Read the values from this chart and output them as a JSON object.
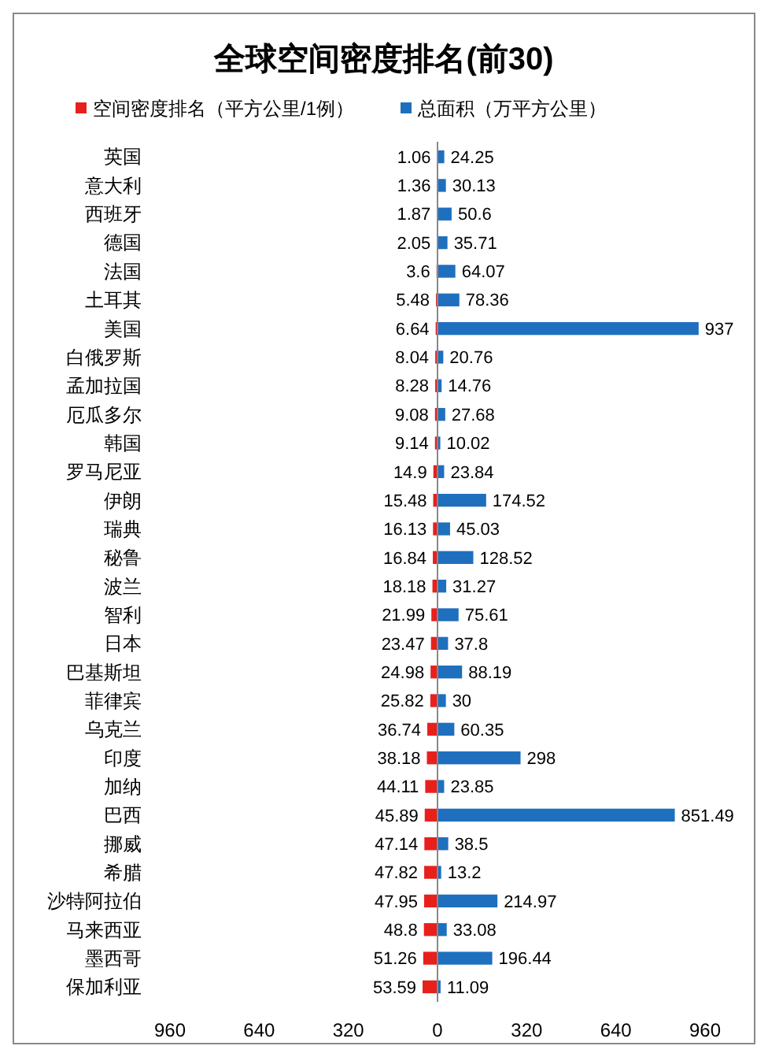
{
  "chart_data": {
    "type": "bar",
    "orientation": "horizontal",
    "stacked": true,
    "title": "全球空间密度排名(前30)",
    "legend": "top",
    "categories": [
      "英国",
      "意大利",
      "西班牙",
      "德国",
      "法国",
      "土耳其",
      "美国",
      "白俄罗斯",
      "孟加拉国",
      "厄瓜多尔",
      "韩国",
      "罗马尼亚",
      "伊朗",
      "瑞典",
      "秘鲁",
      "波兰",
      "智利",
      "日本",
      "巴基斯坦",
      "菲律宾",
      "乌克兰",
      "印度",
      "加纳",
      "巴西",
      "挪威",
      "希腊",
      "沙特阿拉伯",
      "马来西亚",
      "墨西哥",
      "保加利亚"
    ],
    "series": [
      {
        "name": "空间密度排名（平方公里/1例）",
        "color": "#e8201c",
        "values": [
          1.06,
          1.36,
          1.87,
          2.05,
          3.6,
          5.48,
          6.64,
          8.04,
          8.28,
          9.08,
          9.14,
          14.9,
          15.48,
          16.13,
          16.84,
          18.18,
          21.99,
          23.47,
          24.98,
          25.82,
          36.74,
          38.18,
          44.11,
          45.89,
          47.14,
          47.82,
          47.95,
          48.8,
          51.26,
          53.59
        ],
        "base": [
          -1.06,
          -1.36,
          -1.87,
          -2.05,
          -3.6,
          -5.48,
          -6.64,
          -8.04,
          -8.28,
          -9.08,
          -9.14,
          -14.9,
          -15.48,
          -16.13,
          -16.84,
          -18.18,
          -21.99,
          -23.47,
          -24.98,
          -25.82,
          -36.74,
          -38.18,
          -44.11,
          -45.89,
          -47.14,
          -47.82,
          -47.95,
          -48.8,
          -51.26,
          -53.59
        ],
        "value_labels": [
          "1.06",
          "1.36",
          "1.87",
          "2.05",
          "3.6",
          "5.48",
          "6.64",
          "8.04",
          "8.28",
          "9.08",
          "9.14",
          "14.9",
          "15.48",
          "16.13",
          "16.84",
          "18.18",
          "21.99",
          "23.47",
          "24.98",
          "25.82",
          "36.74",
          "38.18",
          "44.11",
          "45.89",
          "47.14",
          "47.82",
          "47.95",
          "48.8",
          "51.26",
          "53.59"
        ]
      },
      {
        "name": "总面积（万平方公里）",
        "color": "#1f6fbf",
        "values": [
          24.25,
          30.13,
          50.6,
          35.71,
          64.07,
          78.36,
          937,
          20.76,
          14.76,
          27.68,
          10.02,
          23.84,
          174.52,
          45.03,
          128.52,
          31.27,
          75.61,
          37.8,
          88.19,
          30,
          60.35,
          298,
          23.85,
          851.49,
          38.5,
          13.2,
          214.97,
          33.08,
          196.44,
          11.09
        ],
        "value_labels": [
          "24.25",
          "30.13",
          "50.6",
          "35.71",
          "64.07",
          "78.36",
          "937",
          "20.76",
          "14.76",
          "27.68",
          "10.02",
          "23.84",
          "174.52",
          "45.03",
          "128.52",
          "31.27",
          "75.61",
          "37.8",
          "88.19",
          "30",
          "60.35",
          "298",
          "23.85",
          "851.49",
          "38.5",
          "13.2",
          "214.97",
          "33.08",
          "196.44",
          "11.09"
        ]
      }
    ],
    "xlim": [
      -960,
      960
    ],
    "xticks": [
      {
        "value": -960,
        "label": "960"
      },
      {
        "value": -640,
        "label": "640"
      },
      {
        "value": -320,
        "label": "320"
      },
      0,
      320,
      640,
      960
    ]
  }
}
